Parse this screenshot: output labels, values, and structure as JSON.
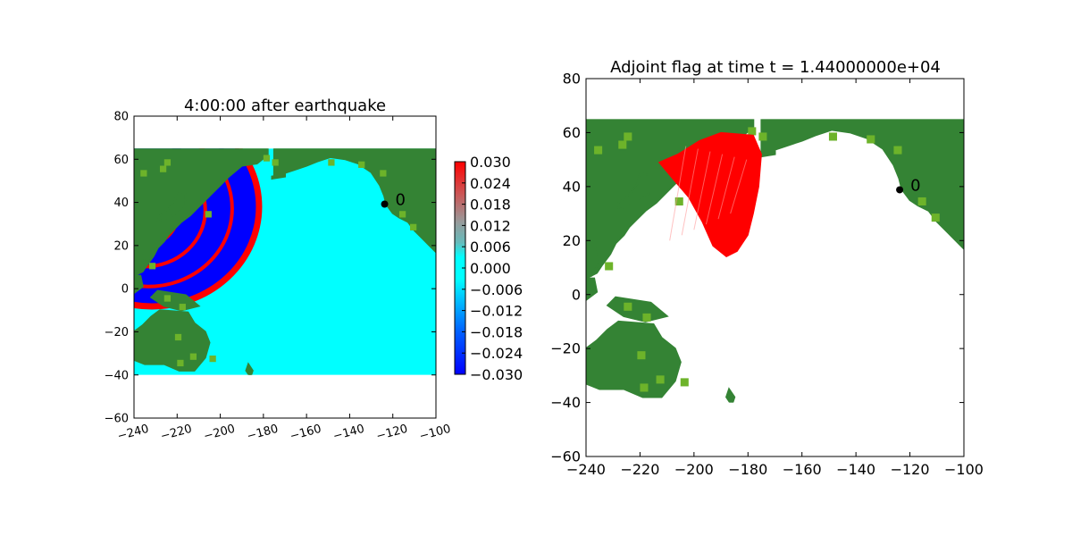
{
  "colors": {
    "land": "#348334",
    "land_light": "#6db32a",
    "ocean": "#00ffff",
    "wave_red": "#ff0000",
    "wave_blue": "#0000ff",
    "flag_red": "#ff0000",
    "background": "#ffffff"
  },
  "chart_data": [
    {
      "type": "heatmap",
      "title": "4:00:00 after earthquake",
      "xlim": [
        -240,
        -100
      ],
      "ylim": [
        -60,
        80
      ],
      "xticks": [
        "−240",
        "−220",
        "−200",
        "−180",
        "−160",
        "−140",
        "−120",
        "−100"
      ],
      "yticks": [
        "80",
        "60",
        "40",
        "20",
        "0",
        "−20",
        "−40",
        "−60"
      ],
      "xtick_rotation_deg": 15,
      "domain": {
        "lon": [
          -240,
          -100
        ],
        "lat": [
          -40,
          65
        ]
      },
      "gauge": {
        "lon": -123.8,
        "lat": 39.2,
        "label": "0"
      },
      "colorbar": {
        "range": [
          -0.03,
          0.03
        ],
        "ticks": [
          "0.030",
          "0.024",
          "0.018",
          "0.012",
          "0.006",
          "0.000",
          "−0.006",
          "−0.012",
          "−0.018",
          "−0.024",
          "−0.030"
        ]
      },
      "wave_front": {
        "center_lon": -240,
        "center_lat": 38,
        "radius_deg": 54
      }
    },
    {
      "type": "heatmap",
      "title": "Adjoint flag at time t = 1.44000000e+04",
      "xlim": [
        -240,
        -100
      ],
      "ylim": [
        -60,
        80
      ],
      "xticks": [
        "−240",
        "−220",
        "−200",
        "−180",
        "−160",
        "−140",
        "−120",
        "−100"
      ],
      "yticks": [
        "80",
        "60",
        "40",
        "20",
        "0",
        "−20",
        "−40",
        "−60"
      ],
      "domain": {
        "lon": [
          -240,
          -100
        ],
        "lat": [
          -40,
          65
        ]
      },
      "gauge": {
        "lon": -123.8,
        "lat": 38.8,
        "label": "0"
      },
      "flag_region": {
        "lon": [
          -213,
          -175
        ],
        "lat": [
          14,
          60
        ]
      }
    }
  ]
}
